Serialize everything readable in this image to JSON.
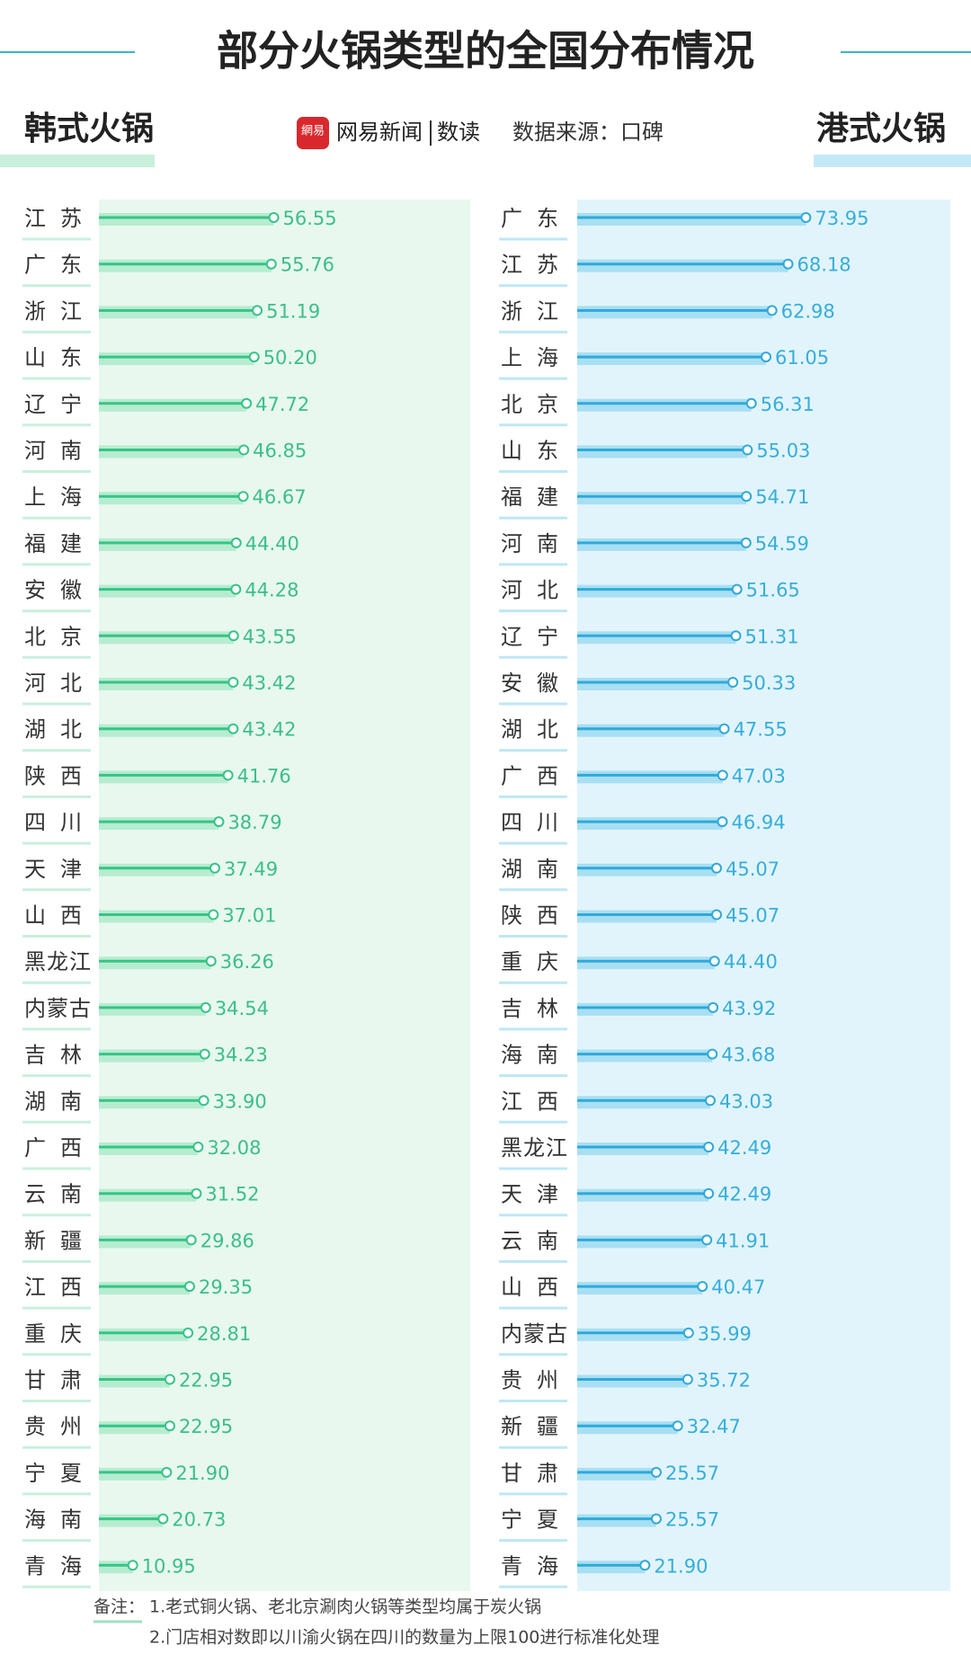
{
  "title": "部分火锅类型的全国分布情况",
  "brand": {
    "logo": "網易",
    "name": "网易新闻",
    "column": "数读"
  },
  "source": "数据来源：口碑",
  "notes": {
    "label": "备注：",
    "lines": [
      "1.老式铜火锅、老北京涮肉火锅等类型均属于炭火锅",
      "2.门店相对数即以川渝火锅在四川的数量为上限100进行标准化处理"
    ]
  },
  "chart_data": [
    {
      "type": "hbar",
      "title": "韩式火锅",
      "categories": [
        "江苏",
        "广东",
        "浙江",
        "山东",
        "辽宁",
        "河南",
        "上海",
        "福建",
        "安徽",
        "北京",
        "河北",
        "湖北",
        "陕西",
        "四川",
        "天津",
        "山西",
        "黑龙江",
        "内蒙古",
        "吉林",
        "湖南",
        "广西",
        "云南",
        "新疆",
        "江西",
        "重庆",
        "甘肃",
        "贵州",
        "宁夏",
        "海南",
        "青海"
      ],
      "series": [
        {
          "color": "#36c487",
          "values": [
            56.55,
            55.76,
            51.19,
            50.2,
            47.72,
            46.85,
            46.67,
            44.4,
            44.28,
            43.55,
            43.42,
            43.42,
            41.76,
            38.79,
            37.49,
            37.01,
            36.26,
            34.54,
            34.23,
            33.9,
            32.08,
            31.52,
            29.86,
            29.35,
            28.81,
            22.95,
            22.95,
            21.9,
            20.73,
            10.95
          ],
          "value_labels": [
            "56.55",
            "55.76",
            "51.19",
            "50.20",
            "47.72",
            "46.85",
            "46.67",
            "44.40",
            "44.28",
            "43.55",
            "43.42",
            "43.42",
            "41.76",
            "38.79",
            "37.49",
            "37.01",
            "36.26",
            "34.54",
            "34.23",
            "33.90",
            "32.08",
            "31.52",
            "29.86",
            "29.35",
            "28.81",
            "22.95",
            "22.95",
            "21.90",
            "20.73",
            "10.95"
          ]
        }
      ]
    },
    {
      "type": "hbar",
      "title": "港式火锅",
      "categories": [
        "广东",
        "江苏",
        "浙江",
        "上海",
        "北京",
        "山东",
        "福建",
        "河南",
        "河北",
        "辽宁",
        "安徽",
        "湖北",
        "广西",
        "四川",
        "湖南",
        "陕西",
        "重庆",
        "吉林",
        "海南",
        "江西",
        "黑龙江",
        "天津",
        "云南",
        "山西",
        "内蒙古",
        "贵州",
        "新疆",
        "甘肃",
        "宁夏",
        "青海"
      ],
      "series": [
        {
          "color": "#2fa9da",
          "values": [
            73.95,
            68.18,
            62.98,
            61.05,
            56.31,
            55.03,
            54.71,
            54.59,
            51.65,
            51.31,
            50.33,
            47.55,
            47.03,
            46.94,
            45.07,
            45.07,
            44.4,
            43.92,
            43.68,
            43.03,
            42.49,
            42.49,
            41.91,
            40.47,
            35.99,
            35.72,
            32.47,
            25.57,
            25.57,
            21.9
          ],
          "value_labels": [
            "73.95",
            "68.18",
            "62.98",
            "61.05",
            "56.31",
            "55.03",
            "54.71",
            "54.59",
            "51.65",
            "51.31",
            "50.33",
            "47.55",
            "47.03",
            "46.94",
            "45.07",
            "45.07",
            "44.40",
            "43.92",
            "43.68",
            "43.03",
            "42.49",
            "42.49",
            "41.91",
            "40.47",
            "35.99",
            "35.72",
            "32.47",
            "25.57",
            "25.57",
            "21.90"
          ]
        }
      ]
    }
  ]
}
